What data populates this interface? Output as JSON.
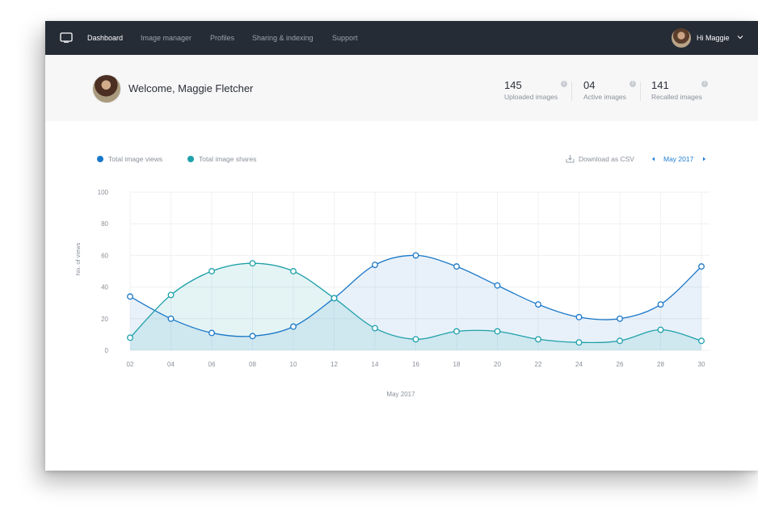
{
  "nav": {
    "items": [
      {
        "label": "Dashboard",
        "active": true
      },
      {
        "label": "Image manager",
        "active": false
      },
      {
        "label": "Profiles",
        "active": false
      },
      {
        "label": "Sharing & indexing",
        "active": false
      },
      {
        "label": "Support",
        "active": false
      }
    ],
    "user_greeting": "Hi Maggie"
  },
  "header": {
    "welcome": "Welcome, Maggie Fletcher",
    "stats": [
      {
        "value": "145",
        "label": "Uploaded images"
      },
      {
        "value": "04",
        "label": "Active images"
      },
      {
        "value": "141",
        "label": "Recalled images"
      }
    ]
  },
  "controls": {
    "download_label": "Download as CSV",
    "month": "May 2017"
  },
  "colors": {
    "nav_bg": "#252c36",
    "views": "#1b78c8",
    "shares": "#1fa1aa",
    "accent": "#1f7fd0"
  },
  "chart_data": {
    "type": "area",
    "title": "",
    "xlabel": "May 2017",
    "ylabel": "No. of views",
    "ylim": [
      0,
      100
    ],
    "yticks": [
      "0",
      "20",
      "40",
      "60",
      "80",
      "100"
    ],
    "categories": [
      "02",
      "04",
      "06",
      "08",
      "10",
      "12",
      "14",
      "16",
      "18",
      "20",
      "22",
      "24",
      "26",
      "28",
      "30"
    ],
    "grid": true,
    "legend_position": "top-left",
    "series": [
      {
        "name": "Total image views",
        "color": "#1b78c8",
        "values": [
          34,
          20,
          11,
          9,
          15,
          33,
          54,
          60,
          53,
          41,
          29,
          21,
          20,
          29,
          53
        ]
      },
      {
        "name": "Total image shares",
        "color": "#1fa1aa",
        "values": [
          8,
          35,
          50,
          55,
          50,
          33,
          14,
          7,
          12,
          12,
          7,
          5,
          6,
          13,
          6
        ]
      }
    ]
  }
}
